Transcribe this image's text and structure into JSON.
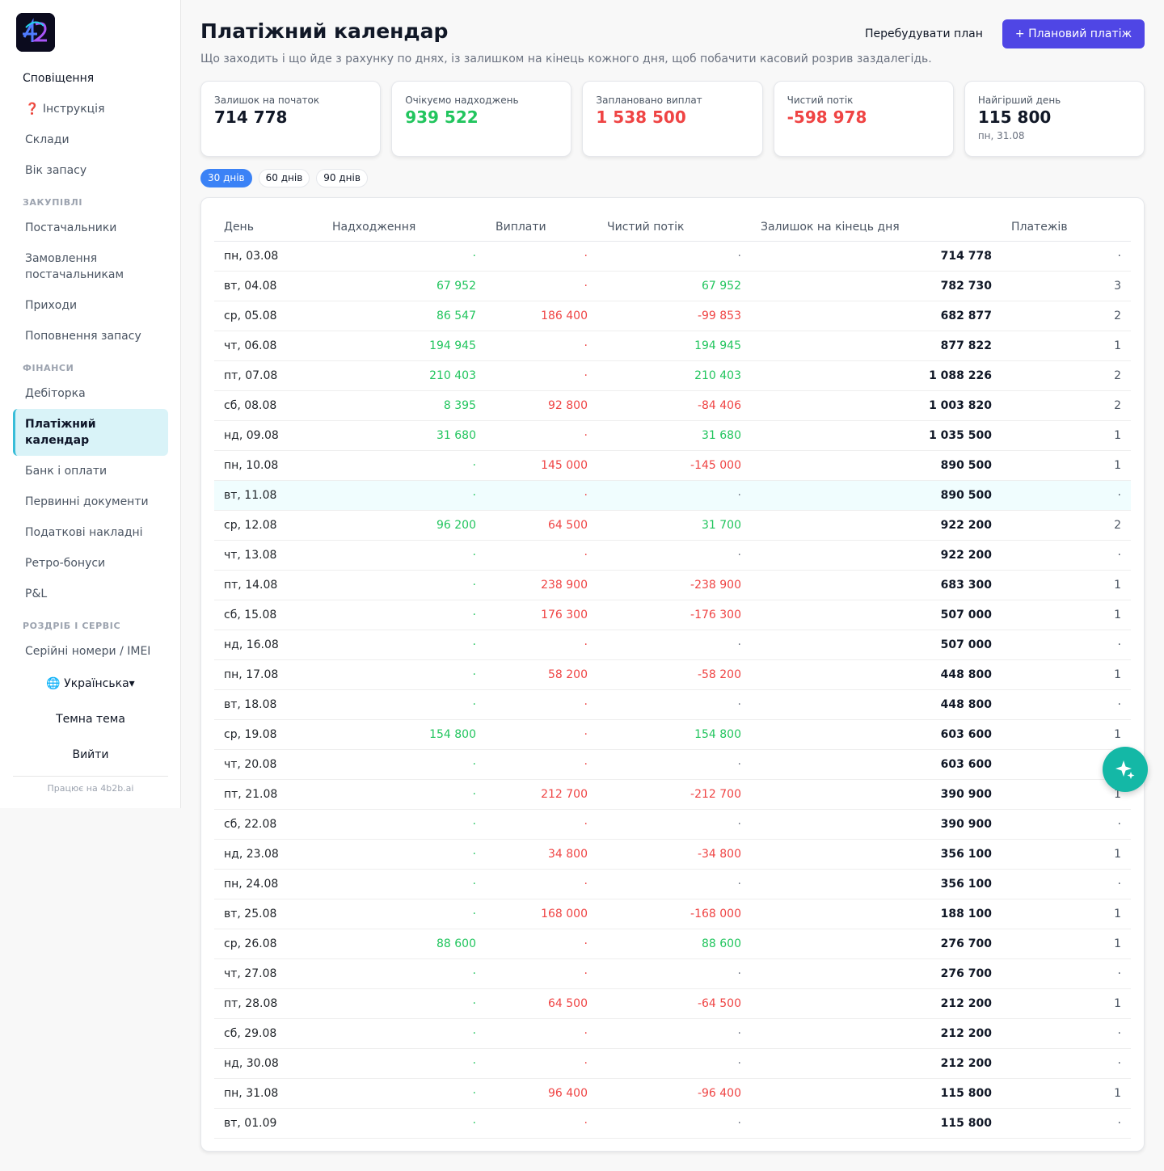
{
  "sidebar": {
    "logo_icon": "4b2b-logo-icon",
    "top_items": [
      {
        "label": "Сповіщення"
      },
      {
        "label": "❓ Інструкція"
      },
      {
        "label": "Склади"
      },
      {
        "label": "Вік запасу"
      }
    ],
    "sections": [
      {
        "title": "ЗАКУПІВЛІ",
        "items": [
          "Постачальники",
          "Замовлення постачальникам",
          "Приходи",
          "Поповнення запасу"
        ]
      },
      {
        "title": "ФІНАНСИ",
        "items": [
          "Дебіторка",
          "Платіжний календар",
          "Банк і оплати",
          "Первинні документи",
          "Податкові накладні",
          "Ретро-бонуси",
          "P&L"
        ]
      },
      {
        "title": "РОЗДРІБ І СЕРВІС",
        "items": [
          "Серійні номери / IMEI"
        ]
      }
    ],
    "active_item": "Платіжний календар",
    "language": "🌐 Українська▾",
    "dark_theme": "Темна тема",
    "logout": "Вийти",
    "powered_by": "Працює на 4b2b.ai"
  },
  "header": {
    "title": "Платіжний календар",
    "subtitle": "Що заходить і що йде з рахунку по днях, із залишком на кінець кожного дня, щоб побачити касовий розрив заздалегідь.",
    "rebuild_label": "Перебудувати план",
    "plan_label": "+ Плановий платіж"
  },
  "kpis": [
    {
      "label": "Залишок на початок",
      "value": "714 778",
      "tone": "neutral"
    },
    {
      "label": "Очікуємо надходжень",
      "value": "939 522",
      "tone": "green"
    },
    {
      "label": "Заплановано виплат",
      "value": "1 538 500",
      "tone": "red"
    },
    {
      "label": "Чистий потік",
      "value": "-598 978",
      "tone": "red"
    },
    {
      "label": "Найгірший день",
      "value": "115 800",
      "tone": "neutral",
      "sub": "пн, 31.08"
    }
  ],
  "ranges": [
    {
      "label": "30 днів",
      "active": true
    },
    {
      "label": "60 днів",
      "active": false
    },
    {
      "label": "90 днів",
      "active": false
    }
  ],
  "table": {
    "columns": [
      "День",
      "Надходження",
      "Виплати",
      "Чистий потік",
      "Залишок на кінець дня",
      "Платежів"
    ],
    "rows": [
      {
        "day": "пн, 03.08",
        "in": "·",
        "out": "·",
        "net": "·",
        "bal": "714 778",
        "cnt": "·"
      },
      {
        "day": "вт, 04.08",
        "in": "67 952",
        "out": "·",
        "net": "67 952",
        "bal": "782 730",
        "cnt": "3"
      },
      {
        "day": "ср, 05.08",
        "in": "86 547",
        "out": "186 400",
        "net": "-99 853",
        "bal": "682 877",
        "cnt": "2"
      },
      {
        "day": "чт, 06.08",
        "in": "194 945",
        "out": "·",
        "net": "194 945",
        "bal": "877 822",
        "cnt": "1"
      },
      {
        "day": "пт, 07.08",
        "in": "210 403",
        "out": "·",
        "net": "210 403",
        "bal": "1 088 226",
        "cnt": "2"
      },
      {
        "day": "сб, 08.08",
        "in": "8 395",
        "out": "92 800",
        "net": "-84 406",
        "bal": "1 003 820",
        "cnt": "2"
      },
      {
        "day": "нд, 09.08",
        "in": "31 680",
        "out": "·",
        "net": "31 680",
        "bal": "1 035 500",
        "cnt": "1"
      },
      {
        "day": "пн, 10.08",
        "in": "·",
        "out": "145 000",
        "net": "-145 000",
        "bal": "890 500",
        "cnt": "1"
      },
      {
        "day": "вт, 11.08",
        "in": "·",
        "out": "·",
        "net": "·",
        "bal": "890 500",
        "cnt": "·",
        "highlight": true
      },
      {
        "day": "ср, 12.08",
        "in": "96 200",
        "out": "64 500",
        "net": "31 700",
        "bal": "922 200",
        "cnt": "2"
      },
      {
        "day": "чт, 13.08",
        "in": "·",
        "out": "·",
        "net": "·",
        "bal": "922 200",
        "cnt": "·"
      },
      {
        "day": "пт, 14.08",
        "in": "·",
        "out": "238 900",
        "net": "-238 900",
        "bal": "683 300",
        "cnt": "1"
      },
      {
        "day": "сб, 15.08",
        "in": "·",
        "out": "176 300",
        "net": "-176 300",
        "bal": "507 000",
        "cnt": "1"
      },
      {
        "day": "нд, 16.08",
        "in": "·",
        "out": "·",
        "net": "·",
        "bal": "507 000",
        "cnt": "·"
      },
      {
        "day": "пн, 17.08",
        "in": "·",
        "out": "58 200",
        "net": "-58 200",
        "bal": "448 800",
        "cnt": "1"
      },
      {
        "day": "вт, 18.08",
        "in": "·",
        "out": "·",
        "net": "·",
        "bal": "448 800",
        "cnt": "·"
      },
      {
        "day": "ср, 19.08",
        "in": "154 800",
        "out": "·",
        "net": "154 800",
        "bal": "603 600",
        "cnt": "1"
      },
      {
        "day": "чт, 20.08",
        "in": "·",
        "out": "·",
        "net": "·",
        "bal": "603 600",
        "cnt": "·"
      },
      {
        "day": "пт, 21.08",
        "in": "·",
        "out": "212 700",
        "net": "-212 700",
        "bal": "390 900",
        "cnt": "1"
      },
      {
        "day": "сб, 22.08",
        "in": "·",
        "out": "·",
        "net": "·",
        "bal": "390 900",
        "cnt": "·"
      },
      {
        "day": "нд, 23.08",
        "in": "·",
        "out": "34 800",
        "net": "-34 800",
        "bal": "356 100",
        "cnt": "1"
      },
      {
        "day": "пн, 24.08",
        "in": "·",
        "out": "·",
        "net": "·",
        "bal": "356 100",
        "cnt": "·"
      },
      {
        "day": "вт, 25.08",
        "in": "·",
        "out": "168 000",
        "net": "-168 000",
        "bal": "188 100",
        "cnt": "1"
      },
      {
        "day": "ср, 26.08",
        "in": "88 600",
        "out": "·",
        "net": "88 600",
        "bal": "276 700",
        "cnt": "1"
      },
      {
        "day": "чт, 27.08",
        "in": "·",
        "out": "·",
        "net": "·",
        "bal": "276 700",
        "cnt": "·"
      },
      {
        "day": "пт, 28.08",
        "in": "·",
        "out": "64 500",
        "net": "-64 500",
        "bal": "212 200",
        "cnt": "1"
      },
      {
        "day": "сб, 29.08",
        "in": "·",
        "out": "·",
        "net": "·",
        "bal": "212 200",
        "cnt": "·"
      },
      {
        "day": "нд, 30.08",
        "in": "·",
        "out": "·",
        "net": "·",
        "bal": "212 200",
        "cnt": "·"
      },
      {
        "day": "пн, 31.08",
        "in": "·",
        "out": "96 400",
        "net": "-96 400",
        "bal": "115 800",
        "cnt": "1"
      },
      {
        "day": "вт, 01.09",
        "in": "·",
        "out": "·",
        "net": "·",
        "bal": "115 800",
        "cnt": "·"
      }
    ]
  },
  "fab_icon": "sparkle-icon",
  "colors": {
    "accent": "#4f46e5",
    "green": "#22c55e",
    "red": "#ef4444",
    "active_nav": "#d9f3f8",
    "fab": "#14b8a6"
  }
}
